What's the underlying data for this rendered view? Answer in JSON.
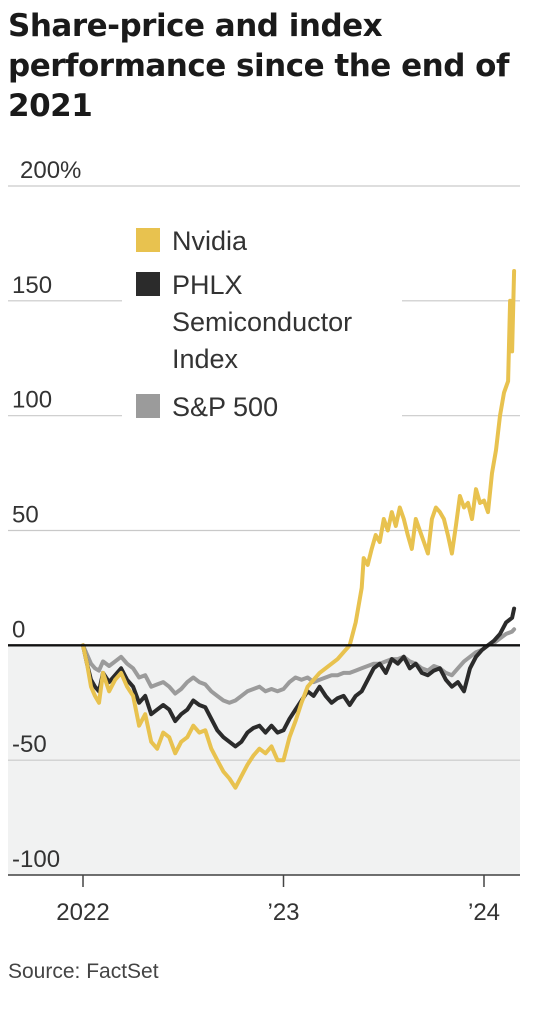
{
  "title": "Share-price and index performance since the end of 2021",
  "source": "Source: FactSet",
  "colors": {
    "nvidia": "#e8c24f",
    "phlx": "#2b2b2b",
    "sp500": "#9b9b9b",
    "negative_band": "#f1f2f2",
    "grid": "#c9c9c9",
    "zero_line": "#111111"
  },
  "chart_data": {
    "type": "line",
    "title": "Share-price and index performance since the end of 2021",
    "xlabel": "",
    "ylabel": "",
    "ylim": [
      -100,
      200
    ],
    "yticks": [
      200,
      150,
      100,
      50,
      0,
      -50,
      -100
    ],
    "ytick_labels": [
      "200%",
      "150",
      "100",
      "50",
      "0",
      "-50",
      "-100"
    ],
    "xticks": [
      2022,
      2023,
      2024
    ],
    "xtick_labels": [
      "2022",
      "’23",
      "’24"
    ],
    "xlim": [
      2022,
      2024.18
    ],
    "grid": true,
    "legend_position": "top-left",
    "series": [
      {
        "name": "Nvidia",
        "color": "#e8c24f",
        "x": [
          2022.0,
          2022.02,
          2022.04,
          2022.06,
          2022.08,
          2022.1,
          2022.13,
          2022.16,
          2022.19,
          2022.22,
          2022.25,
          2022.28,
          2022.31,
          2022.34,
          2022.37,
          2022.4,
          2022.43,
          2022.46,
          2022.49,
          2022.52,
          2022.55,
          2022.58,
          2022.61,
          2022.64,
          2022.67,
          2022.7,
          2022.73,
          2022.76,
          2022.79,
          2022.82,
          2022.85,
          2022.88,
          2022.91,
          2022.94,
          2022.97,
          2023.0,
          2023.03,
          2023.06,
          2023.09,
          2023.12,
          2023.15,
          2023.18,
          2023.21,
          2023.24,
          2023.27,
          2023.3,
          2023.33,
          2023.36,
          2023.39,
          2023.4,
          2023.42,
          2023.44,
          2023.46,
          2023.48,
          2023.5,
          2023.52,
          2023.54,
          2023.56,
          2023.58,
          2023.6,
          2023.62,
          2023.64,
          2023.66,
          2023.68,
          2023.7,
          2023.72,
          2023.74,
          2023.76,
          2023.78,
          2023.8,
          2023.82,
          2023.84,
          2023.86,
          2023.88,
          2023.9,
          2023.92,
          2023.94,
          2023.96,
          2023.98,
          2024.0,
          2024.02,
          2024.04,
          2024.06,
          2024.08,
          2024.1,
          2024.12,
          2024.13,
          2024.14,
          2024.15
        ],
        "values": [
          0,
          -8,
          -18,
          -22,
          -25,
          -12,
          -20,
          -15,
          -12,
          -18,
          -22,
          -35,
          -30,
          -42,
          -45,
          -38,
          -40,
          -47,
          -42,
          -40,
          -35,
          -38,
          -37,
          -45,
          -50,
          -55,
          -58,
          -62,
          -57,
          -52,
          -48,
          -45,
          -47,
          -44,
          -50,
          -50,
          -40,
          -33,
          -25,
          -18,
          -15,
          -12,
          -10,
          -8,
          -6,
          -3,
          0,
          10,
          25,
          38,
          35,
          42,
          48,
          45,
          55,
          50,
          58,
          52,
          60,
          55,
          48,
          42,
          55,
          50,
          45,
          40,
          55,
          60,
          58,
          55,
          48,
          40,
          52,
          65,
          60,
          62,
          55,
          68,
          62,
          63,
          58,
          75,
          85,
          100,
          110,
          115,
          150,
          128,
          163
        ]
      },
      {
        "name": "PHLX Semiconductor Index",
        "color": "#2b2b2b",
        "x": [
          2022.0,
          2022.02,
          2022.04,
          2022.06,
          2022.08,
          2022.1,
          2022.13,
          2022.16,
          2022.19,
          2022.22,
          2022.25,
          2022.28,
          2022.31,
          2022.34,
          2022.37,
          2022.4,
          2022.43,
          2022.46,
          2022.49,
          2022.52,
          2022.55,
          2022.58,
          2022.61,
          2022.64,
          2022.67,
          2022.7,
          2022.73,
          2022.76,
          2022.79,
          2022.82,
          2022.85,
          2022.88,
          2022.91,
          2022.94,
          2022.97,
          2023.0,
          2023.03,
          2023.06,
          2023.09,
          2023.12,
          2023.15,
          2023.18,
          2023.21,
          2023.24,
          2023.27,
          2023.3,
          2023.33,
          2023.36,
          2023.39,
          2023.42,
          2023.45,
          2023.48,
          2023.51,
          2023.54,
          2023.57,
          2023.6,
          2023.63,
          2023.66,
          2023.69,
          2023.72,
          2023.75,
          2023.78,
          2023.81,
          2023.84,
          2023.87,
          2023.9,
          2023.93,
          2023.96,
          2023.99,
          2024.02,
          2024.05,
          2024.08,
          2024.11,
          2024.14,
          2024.15
        ],
        "values": [
          0,
          -8,
          -15,
          -18,
          -20,
          -12,
          -16,
          -13,
          -10,
          -15,
          -18,
          -25,
          -22,
          -30,
          -28,
          -26,
          -28,
          -33,
          -30,
          -28,
          -24,
          -26,
          -27,
          -32,
          -37,
          -40,
          -42,
          -44,
          -42,
          -38,
          -36,
          -35,
          -38,
          -35,
          -38,
          -37,
          -32,
          -28,
          -24,
          -20,
          -22,
          -18,
          -22,
          -25,
          -23,
          -22,
          -26,
          -22,
          -20,
          -15,
          -10,
          -8,
          -12,
          -6,
          -8,
          -5,
          -10,
          -8,
          -12,
          -13,
          -11,
          -10,
          -15,
          -18,
          -16,
          -20,
          -10,
          -5,
          -2,
          0,
          2,
          5,
          10,
          12,
          16
        ]
      },
      {
        "name": "S&P 500",
        "color": "#9b9b9b",
        "x": [
          2022.0,
          2022.02,
          2022.04,
          2022.06,
          2022.08,
          2022.1,
          2022.13,
          2022.16,
          2022.19,
          2022.22,
          2022.25,
          2022.28,
          2022.31,
          2022.34,
          2022.37,
          2022.4,
          2022.43,
          2022.46,
          2022.49,
          2022.52,
          2022.55,
          2022.58,
          2022.61,
          2022.64,
          2022.67,
          2022.7,
          2022.73,
          2022.76,
          2022.79,
          2022.82,
          2022.85,
          2022.88,
          2022.91,
          2022.94,
          2022.97,
          2023.0,
          2023.03,
          2023.06,
          2023.09,
          2023.12,
          2023.15,
          2023.18,
          2023.21,
          2023.24,
          2023.27,
          2023.3,
          2023.33,
          2023.36,
          2023.39,
          2023.42,
          2023.45,
          2023.48,
          2023.51,
          2023.54,
          2023.57,
          2023.6,
          2023.63,
          2023.66,
          2023.69,
          2023.72,
          2023.75,
          2023.78,
          2023.81,
          2023.84,
          2023.87,
          2023.9,
          2023.93,
          2023.96,
          2023.99,
          2024.02,
          2024.05,
          2024.08,
          2024.11,
          2024.14,
          2024.15
        ],
        "values": [
          0,
          -4,
          -8,
          -10,
          -11,
          -7,
          -9,
          -7,
          -5,
          -8,
          -10,
          -14,
          -13,
          -18,
          -17,
          -16,
          -18,
          -21,
          -19,
          -16,
          -14,
          -16,
          -17,
          -20,
          -22,
          -24,
          -25,
          -24,
          -22,
          -20,
          -19,
          -18,
          -20,
          -19,
          -20,
          -19,
          -16,
          -14,
          -15,
          -14,
          -16,
          -15,
          -14,
          -13,
          -13,
          -12,
          -12,
          -11,
          -10,
          -9,
          -8,
          -8,
          -7,
          -6,
          -6,
          -5,
          -7,
          -8,
          -10,
          -11,
          -9,
          -10,
          -12,
          -13,
          -10,
          -7,
          -5,
          -3,
          -2,
          0,
          1,
          3,
          5,
          6,
          7
        ]
      }
    ]
  }
}
